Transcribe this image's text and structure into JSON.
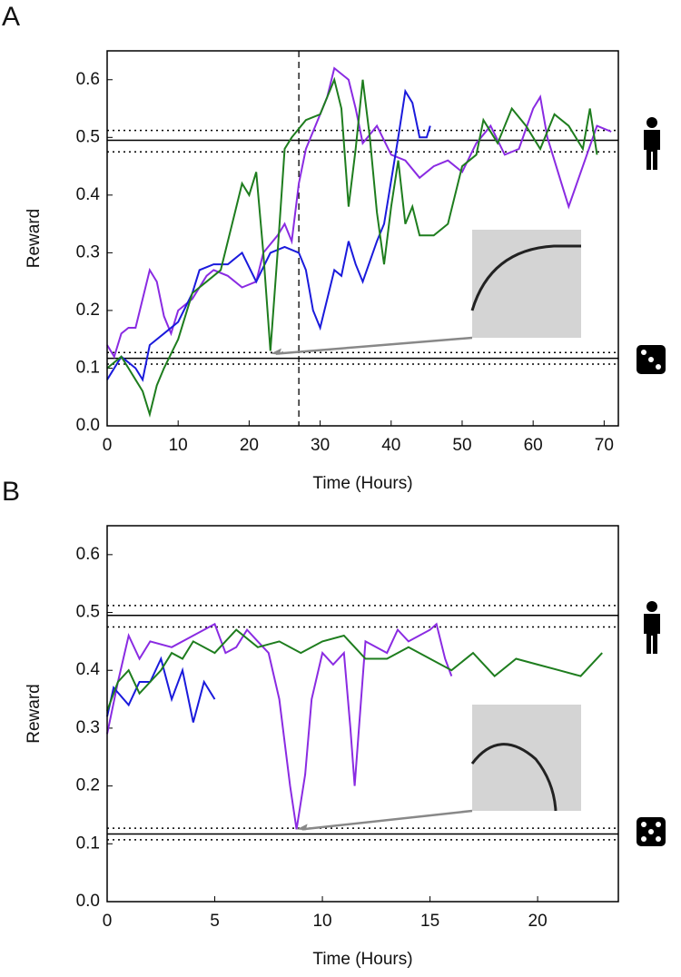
{
  "chart_data": [
    {
      "type": "line",
      "panel_label": "A",
      "xlabel": "Time (Hours)",
      "ylabel": "Reward",
      "xlim": [
        0,
        72
      ],
      "ylim": [
        0,
        0.65
      ],
      "xticks": [
        0,
        10,
        20,
        30,
        40,
        50,
        60,
        70
      ],
      "yticks": [
        {
          "value": 0,
          "label": "0.0"
        },
        0.1,
        0.2,
        0.3,
        0.4,
        0.5,
        0.6
      ],
      "hlines": [
        {
          "value": 0.495,
          "dash": "solid"
        },
        {
          "value": 0.475,
          "dash": "dotted"
        },
        {
          "value": 0.512,
          "dash": "dotted"
        },
        {
          "value": 0.117,
          "dash": "solid"
        },
        {
          "value": 0.107,
          "dash": "dotted"
        },
        {
          "value": 0.127,
          "dash": "dotted"
        }
      ],
      "vlines": [
        {
          "value": 27,
          "dash": "dashed"
        }
      ],
      "arrow_to": [
        23,
        0.125
      ],
      "series": [
        {
          "color": "#8a2be2",
          "x": [
            0,
            1,
            2,
            3,
            4,
            5,
            6,
            7,
            8,
            9,
            10,
            12,
            14,
            15,
            17,
            19,
            21,
            22,
            24,
            25,
            26,
            27,
            28,
            30,
            31,
            32,
            34,
            35,
            36,
            38,
            40,
            42,
            44,
            46,
            48,
            50,
            52,
            54,
            56,
            58,
            60,
            61,
            62,
            64,
            65,
            67,
            69,
            71
          ],
          "values": [
            0.14,
            0.12,
            0.16,
            0.17,
            0.17,
            0.22,
            0.27,
            0.25,
            0.19,
            0.16,
            0.2,
            0.22,
            0.26,
            0.27,
            0.26,
            0.24,
            0.25,
            0.3,
            0.33,
            0.35,
            0.32,
            0.42,
            0.48,
            0.54,
            0.57,
            0.62,
            0.6,
            0.55,
            0.49,
            0.52,
            0.47,
            0.46,
            0.43,
            0.45,
            0.46,
            0.44,
            0.49,
            0.52,
            0.47,
            0.48,
            0.55,
            0.57,
            0.5,
            0.42,
            0.38,
            0.45,
            0.52,
            0.51
          ]
        },
        {
          "color": "#1a1adc",
          "x": [
            0,
            2,
            4,
            5,
            6,
            8,
            10,
            12,
            13,
            15,
            17,
            19,
            21,
            23,
            25,
            27,
            28,
            29,
            30,
            31,
            32,
            33,
            34,
            35,
            36,
            38,
            39,
            41,
            42,
            43,
            44,
            45,
            45.5
          ],
          "values": [
            0.08,
            0.12,
            0.1,
            0.08,
            0.14,
            0.16,
            0.18,
            0.23,
            0.27,
            0.28,
            0.28,
            0.3,
            0.25,
            0.3,
            0.31,
            0.3,
            0.27,
            0.2,
            0.17,
            0.22,
            0.27,
            0.26,
            0.32,
            0.28,
            0.25,
            0.32,
            0.35,
            0.5,
            0.58,
            0.56,
            0.5,
            0.5,
            0.52
          ]
        },
        {
          "color": "#1e7d1e",
          "x": [
            0,
            1,
            2,
            3,
            4,
            5,
            6,
            7,
            8,
            10,
            12,
            14,
            16,
            18,
            19,
            20,
            21,
            22,
            23,
            24,
            25,
            26,
            28,
            30,
            32,
            33,
            34,
            35,
            36,
            37,
            38,
            39,
            40,
            41,
            42,
            43,
            44,
            46,
            48,
            50,
            52,
            53,
            55,
            57,
            59,
            61,
            63,
            65,
            67,
            68,
            69
          ],
          "values": [
            0.1,
            0.11,
            0.12,
            0.1,
            0.08,
            0.06,
            0.02,
            0.07,
            0.1,
            0.15,
            0.23,
            0.25,
            0.27,
            0.37,
            0.42,
            0.4,
            0.44,
            0.3,
            0.13,
            0.3,
            0.48,
            0.5,
            0.53,
            0.54,
            0.6,
            0.55,
            0.38,
            0.48,
            0.6,
            0.5,
            0.37,
            0.28,
            0.38,
            0.46,
            0.35,
            0.38,
            0.33,
            0.33,
            0.35,
            0.45,
            0.47,
            0.53,
            0.49,
            0.55,
            0.52,
            0.48,
            0.54,
            0.52,
            0.48,
            0.55,
            0.47
          ]
        }
      ]
    },
    {
      "type": "line",
      "panel_label": "B",
      "xlabel": "Time (Hours)",
      "ylabel": "Reward",
      "xlim": [
        0,
        23.75
      ],
      "ylim": [
        0,
        0.65
      ],
      "xticks": [
        0,
        5,
        10,
        15,
        20
      ],
      "yticks": [
        {
          "value": 0,
          "label": "0.0"
        },
        0.1,
        0.2,
        0.3,
        0.4,
        0.5,
        0.6
      ],
      "hlines": [
        {
          "value": 0.495,
          "dash": "solid"
        },
        {
          "value": 0.475,
          "dash": "dotted"
        },
        {
          "value": 0.512,
          "dash": "dotted"
        },
        {
          "value": 0.117,
          "dash": "solid"
        },
        {
          "value": 0.107,
          "dash": "dotted"
        },
        {
          "value": 0.127,
          "dash": "dotted"
        }
      ],
      "arrow_to": [
        8.8,
        0.125
      ],
      "series": [
        {
          "color": "#8a2be2",
          "x": [
            0,
            0.5,
            1,
            1.5,
            2,
            3,
            4,
            5,
            5.5,
            6,
            6.5,
            7,
            7.5,
            8,
            8.5,
            8.8,
            9.2,
            9.5,
            10,
            10.5,
            11,
            11.3,
            11.5,
            11.8,
            12,
            13,
            13.5,
            14,
            15,
            15.3,
            15.7,
            16
          ],
          "values": [
            0.29,
            0.38,
            0.46,
            0.42,
            0.45,
            0.44,
            0.46,
            0.48,
            0.43,
            0.44,
            0.47,
            0.45,
            0.43,
            0.35,
            0.2,
            0.125,
            0.22,
            0.35,
            0.43,
            0.41,
            0.43,
            0.3,
            0.2,
            0.35,
            0.45,
            0.43,
            0.47,
            0.45,
            0.47,
            0.48,
            0.42,
            0.39
          ]
        },
        {
          "color": "#1a1adc",
          "x": [
            0,
            0.3,
            1,
            1.5,
            2,
            2.5,
            3,
            3.5,
            4,
            4.5,
            5
          ],
          "values": [
            0.32,
            0.37,
            0.34,
            0.38,
            0.38,
            0.42,
            0.35,
            0.4,
            0.31,
            0.38,
            0.35
          ]
        },
        {
          "color": "#1e7d1e",
          "x": [
            0,
            0.5,
            1,
            1.5,
            2,
            2.5,
            3,
            3.5,
            4,
            5,
            6,
            7,
            8,
            9,
            10,
            11,
            12,
            13,
            14,
            15,
            16,
            17,
            18,
            19,
            20,
            21,
            22,
            23
          ],
          "values": [
            0.33,
            0.38,
            0.4,
            0.36,
            0.38,
            0.4,
            0.43,
            0.42,
            0.45,
            0.43,
            0.47,
            0.44,
            0.45,
            0.43,
            0.45,
            0.46,
            0.42,
            0.42,
            0.44,
            0.42,
            0.4,
            0.43,
            0.39,
            0.42,
            0.41,
            0.4,
            0.39,
            0.43
          ]
        }
      ]
    }
  ]
}
